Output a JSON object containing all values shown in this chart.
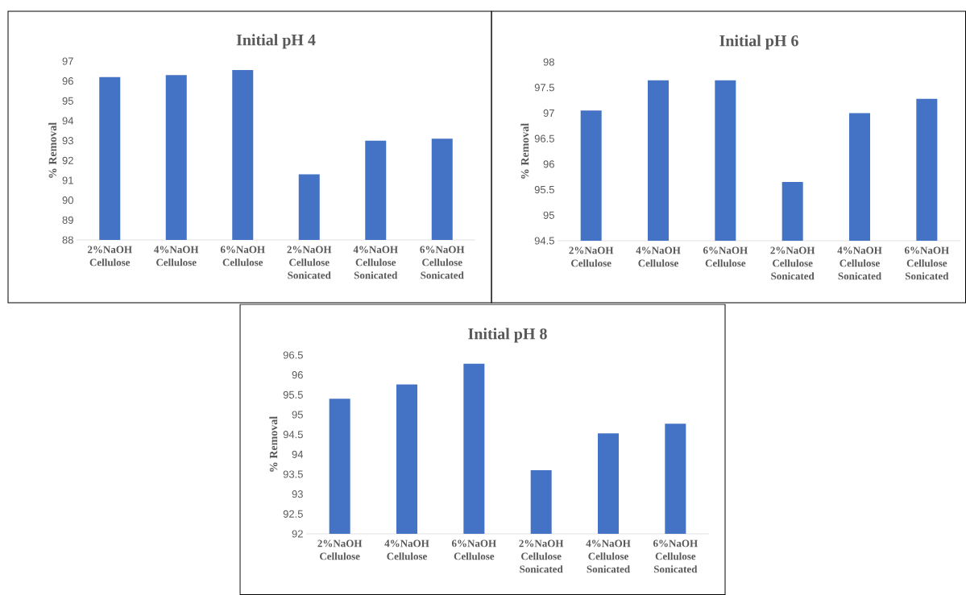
{
  "chart_data": [
    {
      "type": "bar",
      "title": "Initial pH 4",
      "ylabel": "% Removal",
      "categories": [
        "2%NaOH Cellulose",
        "4%NaOH Cellulose",
        "6%NaOH Cellulose",
        "2%NaOH Cellulose Sonicated",
        "4%NaOH Cellulose Sonicated",
        "6%NaOH Cellulose Sonicated"
      ],
      "values": [
        96.2,
        96.3,
        96.55,
        91.3,
        93.0,
        93.1
      ],
      "color": "#4472c4",
      "ylim": [
        88,
        97
      ],
      "yticks": [
        88,
        89,
        90,
        91,
        92,
        93,
        94,
        95,
        96,
        97
      ]
    },
    {
      "type": "bar",
      "title": "Initial pH 6",
      "ylabel": "% Removal",
      "categories": [
        "2%NaOH Cellulose",
        "4%NaOH Cellulose",
        "6%NaOH Cellulose",
        "2%NaOH Cellulose Sonicated",
        "4%NaOH Cellulose Sonicated",
        "6%NaOH Cellulose Sonicated"
      ],
      "values": [
        97.05,
        97.64,
        97.64,
        95.65,
        97.0,
        97.28
      ],
      "color": "#4472c4",
      "ylim": [
        94.5,
        98
      ],
      "yticks": [
        94.5,
        95,
        95.5,
        96,
        96.5,
        97,
        97.5,
        98
      ]
    },
    {
      "type": "bar",
      "title": "Initial pH 8",
      "ylabel": "% Removal",
      "categories": [
        "2%NaOH Cellulose",
        "4%NaOH Cellulose",
        "6%NaOH Cellulose",
        "2%NaOH Cellulose Sonicated",
        "4%NaOH Cellulose Sonicated",
        "6%NaOH Cellulose Sonicated"
      ],
      "values": [
        95.4,
        95.76,
        96.28,
        93.6,
        94.53,
        94.77
      ],
      "color": "#4472c4",
      "ylim": [
        92,
        96.5
      ],
      "yticks": [
        92,
        92.5,
        93,
        93.5,
        94,
        94.5,
        95,
        95.5,
        96,
        96.5
      ]
    }
  ]
}
